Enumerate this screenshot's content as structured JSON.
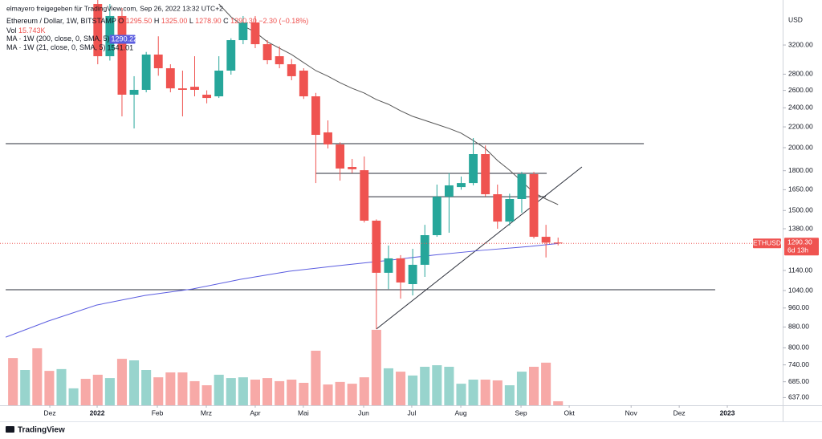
{
  "chart_data": {
    "type": "candlestick",
    "header": {
      "author_line": "elmayero freigegeben für TradingView.com, Sep 26, 2022 13:32 UTC+2",
      "symbol": "Ethereum / Dollar, 1W, BITSTAMP",
      "readout": [
        {
          "key": "O",
          "text": "1295.50"
        },
        {
          "key": "H",
          "text": "1325.00"
        },
        {
          "key": "L",
          "text": "1278.90"
        },
        {
          "key": "C",
          "text": "1290.30"
        }
      ],
      "change": "−2.30 (−0.18%)"
    },
    "currency": "USD",
    "log_scale": true,
    "up_color": "#26a69a",
    "down_color": "#ef5350",
    "xlim": [
      -8.07,
      56.54
    ],
    "ylim": [
      615,
      3932
    ],
    "xticks": [
      {
        "value": -3.96,
        "label": "Dez"
      },
      {
        "value": -0.05,
        "label": "2022"
      },
      {
        "value": 4.92,
        "label": "Feb"
      },
      {
        "value": 8.96,
        "label": "Mrz"
      },
      {
        "value": 13.0,
        "label": "Apr"
      },
      {
        "value": 16.97,
        "label": "Mai"
      },
      {
        "value": 21.95,
        "label": "Jun"
      },
      {
        "value": 25.92,
        "label": "Jul"
      },
      {
        "value": 29.97,
        "label": "Aug"
      },
      {
        "value": 34.94,
        "label": "Sep"
      },
      {
        "value": 38.92,
        "label": "Okt"
      },
      {
        "value": 44.03,
        "label": "Nov"
      },
      {
        "value": 48.0,
        "label": "Dez"
      },
      {
        "value": 51.97,
        "label": "2023"
      }
    ],
    "yticks": [
      {
        "value": 3200,
        "label": "3200.00"
      },
      {
        "value": 2800,
        "label": "2800.00"
      },
      {
        "value": 2600,
        "label": "2600.00"
      },
      {
        "value": 2400,
        "label": "2400.00"
      },
      {
        "value": 2200,
        "label": "2200.00"
      },
      {
        "value": 2000,
        "label": "2000.00"
      },
      {
        "value": 1800,
        "label": "1800.00"
      },
      {
        "value": 1650,
        "label": "1650.00"
      },
      {
        "value": 1500,
        "label": "1500.00"
      },
      {
        "value": 1380,
        "label": "1380.00"
      },
      {
        "value": 1140,
        "label": "1140.00"
      },
      {
        "value": 1040,
        "label": "1040.00"
      },
      {
        "value": 960,
        "label": "960.00"
      },
      {
        "value": 880,
        "label": "880.00"
      },
      {
        "value": 800,
        "label": "800.00"
      },
      {
        "value": 740,
        "label": "740.00"
      },
      {
        "value": 685,
        "label": "685.00"
      },
      {
        "value": 637,
        "label": "637.00"
      }
    ],
    "candles": {
      "x": [
        0,
        1,
        2,
        3,
        4,
        5,
        6,
        7,
        8,
        9,
        10,
        11,
        12,
        13,
        14,
        15,
        16,
        17,
        18,
        19,
        20,
        21,
        22,
        23,
        24,
        25,
        26,
        27,
        28,
        29,
        30,
        31,
        32,
        33,
        34,
        35,
        36,
        37,
        38
      ],
      "open": [
        3860,
        3040,
        3654,
        2549,
        2606,
        3063,
        2877,
        2624,
        2643,
        2549,
        2530,
        2846,
        3272,
        3548,
        3212,
        3040,
        2930,
        2846,
        2530,
        2145,
        2030,
        1831,
        1804,
        1432,
        1128,
        1205,
        1071,
        1170,
        1340,
        1598,
        1670,
        1701,
        1942,
        1616,
        1426,
        1581,
        1772,
        1330,
        1295.5
      ],
      "high": [
        3950,
        3860,
        3790,
        2774,
        3100,
        3330,
        2930,
        2846,
        3040,
        2600,
        3040,
        3300,
        3654,
        3654,
        3272,
        3180,
        3000,
        2877,
        2570,
        2266,
        2050,
        1900,
        1921,
        1440,
        1278,
        1223,
        1259,
        1405,
        1689,
        1780,
        1752,
        2090,
        2020,
        1689,
        1620,
        1790,
        1790,
        1405,
        1325
      ],
      "low": [
        2930,
        2980,
        2308,
        2184,
        2577,
        2780,
        2577,
        2308,
        2530,
        2450,
        2511,
        2794,
        3212,
        3154,
        2930,
        2877,
        2723,
        2500,
        1701,
        1993,
        1720,
        1780,
        1420,
        872,
        1047,
        1002,
        1017,
        1107,
        1330,
        1355,
        1650,
        1683,
        1600,
        1380,
        1400,
        1485,
        1320,
        1210,
        1278.9
      ],
      "close": [
        3040,
        3654,
        2549,
        2606,
        3063,
        2877,
        2624,
        2606,
        2606,
        2511,
        2846,
        3272,
        3548,
        3212,
        2985,
        2930,
        2774,
        2530,
        2121,
        2030,
        1818,
        1812,
        1432,
        1128,
        1205,
        1079,
        1170,
        1340,
        1598,
        1683,
        1701,
        1942,
        1616,
        1426,
        1581,
        1772,
        1330,
        1295,
        1290.3
      ]
    },
    "volume": {
      "name": "Vol",
      "last_label": "15.743K",
      "ylim": [
        0,
        500000
      ],
      "x": [
        -7,
        -6,
        -5,
        -4,
        -3,
        -2,
        -1,
        0,
        1,
        2,
        3,
        4,
        5,
        6,
        7,
        8,
        9,
        10,
        11,
        12,
        13,
        14,
        15,
        16,
        17,
        18,
        19,
        20,
        21,
        22,
        23,
        24,
        25,
        26,
        27,
        28,
        29,
        30,
        31,
        32,
        33,
        34,
        35,
        36,
        37,
        38
      ],
      "values": [
        184000,
        137500,
        222000,
        134000,
        141000,
        66000,
        103000,
        119000,
        106000,
        181000,
        175000,
        137500,
        109000,
        128000,
        128000,
        94000,
        78000,
        119000,
        106000,
        109000,
        100000,
        106000,
        94000,
        100000,
        87500,
        212500,
        81000,
        91000,
        84000,
        109000,
        294000,
        144000,
        131000,
        116000,
        150000,
        156000,
        150000,
        84000,
        100000,
        100000,
        97000,
        78000,
        131000,
        150000,
        166000,
        15743
      ],
      "colors": [
        "#f7a9a7",
        "#98d4cd",
        "#f7a9a7",
        "#f7a9a7",
        "#98d4cd",
        "#98d4cd",
        "#f7a9a7",
        "#f7a9a7",
        "#98d4cd",
        "#f7a9a7",
        "#98d4cd",
        "#98d4cd",
        "#f7a9a7",
        "#f7a9a7",
        "#f7a9a7",
        "#f7a9a7",
        "#f7a9a7",
        "#98d4cd",
        "#98d4cd",
        "#98d4cd",
        "#f7a9a7",
        "#f7a9a7",
        "#f7a9a7",
        "#f7a9a7",
        "#f7a9a7",
        "#f7a9a7",
        "#f7a9a7",
        "#f7a9a7",
        "#f7a9a7",
        "#f7a9a7",
        "#f7a9a7",
        "#98d4cd",
        "#f7a9a7",
        "#98d4cd",
        "#98d4cd",
        "#98d4cd",
        "#98d4cd",
        "#98d4cd",
        "#98d4cd",
        "#f7a9a7",
        "#f7a9a7",
        "#98d4cd",
        "#98d4cd",
        "#f7a9a7",
        "#f7a9a7",
        "#f7a9a7"
      ]
    },
    "moving_averages": [
      {
        "name": "MA · 1W (200, close, 0, SMA, 5)",
        "color": "#5b5de0",
        "last_label": "1290.22",
        "x": [
          -7.6,
          -4.1,
          -0.1,
          3.9,
          7.8,
          11.8,
          15.8,
          19.8,
          23.7,
          27.7,
          31.7,
          35.7,
          38
        ],
        "values": [
          840,
          904,
          973,
          1017,
          1047,
          1095,
          1136,
          1165,
          1192,
          1223,
          1250,
          1273,
          1290.22
        ]
      },
      {
        "name": "MA · 1W (21, close, 0, SMA, 5)",
        "color": "#555555",
        "last_label": "1541.01",
        "x": [
          10,
          11,
          12,
          13,
          14,
          15,
          16,
          17,
          18,
          19,
          20,
          21,
          22,
          23,
          24,
          25,
          26,
          27,
          28,
          29,
          30,
          31,
          32,
          33,
          34,
          35,
          36,
          37,
          38
        ],
        "values": [
          3860,
          3640,
          3494,
          3394,
          3248,
          3154,
          3063,
          2952,
          2846,
          2774,
          2693,
          2624,
          2568,
          2493,
          2439,
          2368,
          2308,
          2266,
          2225,
          2184,
          2137,
          2067,
          1993,
          1886,
          1804,
          1714,
          1628,
          1581,
          1541.01
        ]
      }
    ],
    "drawings": [
      {
        "x": [
          -7.6,
          45.08
        ],
        "y": [
          2037,
          2037
        ]
      },
      {
        "x": [
          17.97,
          37.06
        ],
        "y": [
          1778,
          1778
        ]
      },
      {
        "x": [
          22.28,
          36.99
        ],
        "y": [
          1598,
          1598
        ]
      },
      {
        "x": [
          -7.6,
          50.97
        ],
        "y": [
          1044,
          1044
        ]
      },
      {
        "x": [
          23.0,
          39.97
        ],
        "y": [
          872,
          1831
        ]
      }
    ],
    "price_label": {
      "symbol": "ETHUSD",
      "price": "1290.30",
      "countdown": "6d 13h"
    },
    "brand": "TradingView"
  }
}
